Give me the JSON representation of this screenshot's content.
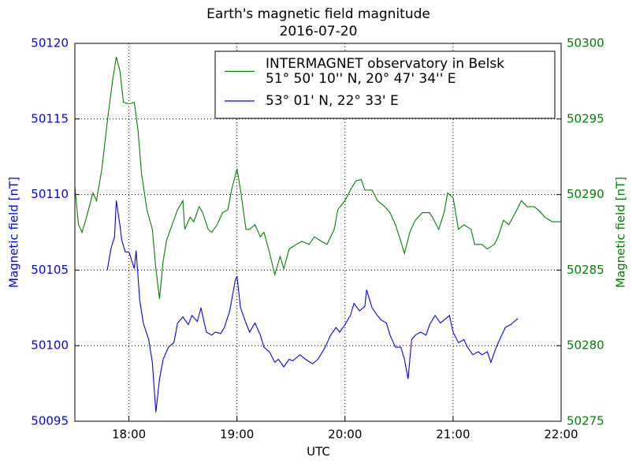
{
  "chart_data": {
    "type": "line",
    "title": "Earth's magnetic field magnitude",
    "subtitle": "2016-07-20",
    "xlabel": "UTC",
    "ylabel": "Magnetic field [nT]",
    "y2label": "Magnetic field [nT]",
    "xlim": [
      "17:30",
      "22:00"
    ],
    "xticks": [
      "18:00",
      "19:00",
      "20:00",
      "21:00",
      "22:00"
    ],
    "ylim": [
      50095,
      50120
    ],
    "yticks": [
      50095,
      50100,
      50105,
      50110,
      50115,
      50120
    ],
    "y2lim": [
      50275,
      50300
    ],
    "y2ticks": [
      50275,
      50280,
      50285,
      50290,
      50295,
      50300
    ],
    "grid": true,
    "legend": "upper right",
    "series": [
      {
        "name": [
          "INTERMAGNET observatory in Belsk",
          "51° 50' 10'' N, 20° 47' 34'' E"
        ],
        "color": "#008000",
        "axis": "y2",
        "x": [
          "17:30",
          "17:32",
          "17:34",
          "17:36",
          "17:40",
          "17:42",
          "17:45",
          "17:48",
          "17:51",
          "17:53",
          "17:55",
          "17:57",
          "18:00",
          "18:03",
          "18:05",
          "18:07",
          "18:10",
          "18:13",
          "18:15",
          "18:17",
          "18:19",
          "18:21",
          "18:24",
          "18:27",
          "18:30",
          "18:31",
          "18:34",
          "18:36",
          "18:39",
          "18:41",
          "18:44",
          "18:46",
          "18:49",
          "18:52",
          "18:55",
          "18:57",
          "19:00",
          "19:02",
          "19:05",
          "19:07",
          "19:10",
          "19:13",
          "19:15",
          "19:18",
          "19:21",
          "19:24",
          "19:26",
          "19:29",
          "19:33",
          "19:36",
          "19:40",
          "19:43",
          "19:47",
          "19:50",
          "19:54",
          "19:56",
          "20:00",
          "20:03",
          "20:06",
          "20:09",
          "20:11",
          "20:15",
          "20:18",
          "20:22",
          "20:25",
          "20:28",
          "20:31",
          "20:33",
          "20:36",
          "20:39",
          "20:43",
          "20:47",
          "20:49",
          "20:52",
          "20:55",
          "20:57",
          "21:00",
          "21:03",
          "21:06",
          "21:10",
          "21:12",
          "21:16",
          "21:19",
          "21:23",
          "21:25",
          "21:28",
          "21:31",
          "21:35",
          "21:38",
          "21:41",
          "21:45",
          "21:48",
          "21:51",
          "21:55",
          "22:00"
        ],
        "values": [
          50290.5,
          50288.0,
          50287.5,
          50288.3,
          50290.1,
          50289.6,
          50291.7,
          50294.8,
          50297.6,
          50299.1,
          50298.2,
          50296.1,
          50296.0,
          50296.1,
          50294.3,
          50291.4,
          50289.0,
          50287.7,
          50285.1,
          50283.1,
          50285.6,
          50287.0,
          50288.0,
          50289.0,
          50289.6,
          50287.7,
          50288.5,
          50288.2,
          50289.2,
          50288.8,
          50287.7,
          50287.5,
          50288.0,
          50288.8,
          50289.0,
          50290.3,
          50291.7,
          50290.3,
          50287.7,
          50287.7,
          50288.0,
          50287.2,
          50287.5,
          50286.2,
          50284.7,
          50285.9,
          50285.1,
          50286.4,
          50286.7,
          50286.9,
          50286.7,
          50287.2,
          50286.9,
          50286.7,
          50287.7,
          50289.0,
          50289.6,
          50290.3,
          50290.9,
          50291.0,
          50290.3,
          50290.3,
          50289.6,
          50289.2,
          50288.8,
          50288.0,
          50286.9,
          50286.1,
          50287.5,
          50288.3,
          50288.8,
          50288.8,
          50288.4,
          50287.7,
          50288.8,
          50290.1,
          50289.8,
          50287.7,
          50288.0,
          50287.7,
          50286.7,
          50286.7,
          50286.4,
          50286.7,
          50287.2,
          50288.3,
          50288.0,
          50288.9,
          50289.6,
          50289.2,
          50289.2,
          50288.9,
          50288.5,
          50288.2,
          50288.2
        ]
      },
      {
        "name": [
          "53° 01' N, 22° 33' E"
        ],
        "color": "#0000ff",
        "axis": "y",
        "x": [
          "17:48",
          "17:50",
          "17:52",
          "17:53",
          "17:55",
          "17:56",
          "17:58",
          "18:00",
          "18:03",
          "18:04",
          "18:06",
          "18:08",
          "18:11",
          "18:13",
          "18:15",
          "18:17",
          "18:19",
          "18:22",
          "18:25",
          "18:27",
          "18:30",
          "18:33",
          "18:35",
          "18:38",
          "18:40",
          "18:43",
          "18:46",
          "18:48",
          "18:51",
          "18:53",
          "18:56",
          "18:59",
          "19:00",
          "19:02",
          "19:05",
          "19:07",
          "19:10",
          "19:13",
          "19:15",
          "19:18",
          "19:21",
          "19:23",
          "19:26",
          "19:29",
          "19:31",
          "19:35",
          "19:38",
          "19:42",
          "19:45",
          "19:49",
          "19:52",
          "19:55",
          "19:57",
          "20:00",
          "20:03",
          "20:05",
          "20:08",
          "20:11",
          "20:12",
          "20:15",
          "20:18",
          "20:20",
          "20:23",
          "20:25",
          "20:28",
          "20:31",
          "20:33",
          "20:35",
          "20:37",
          "20:39",
          "20:42",
          "20:45",
          "20:47",
          "20:50",
          "20:53",
          "20:55",
          "20:58",
          "21:00",
          "21:03",
          "21:06",
          "21:08",
          "21:11",
          "21:14",
          "21:16",
          "21:19",
          "21:21",
          "21:24",
          "21:27",
          "21:29",
          "21:32",
          "21:34",
          "21:36"
        ],
        "values": [
          50105.0,
          50106.4,
          50107.2,
          50109.6,
          50108.0,
          50107.0,
          50106.2,
          50106.2,
          50105.1,
          50106.3,
          50103.0,
          50101.5,
          50100.4,
          50098.9,
          50095.6,
          50097.8,
          50099.1,
          50099.9,
          50100.2,
          50101.5,
          50101.9,
          50101.4,
          50102.0,
          50101.6,
          50102.5,
          50100.9,
          50100.7,
          50100.9,
          50100.8,
          50101.2,
          50102.3,
          50104.3,
          50104.6,
          50102.5,
          50101.5,
          50100.9,
          50101.5,
          50100.7,
          50099.9,
          50099.6,
          50098.9,
          50099.1,
          50098.6,
          50099.1,
          50099.0,
          50099.4,
          50099.1,
          50098.8,
          50099.1,
          50099.9,
          50100.7,
          50101.2,
          50100.9,
          50101.4,
          50102.0,
          50102.8,
          50102.3,
          50102.6,
          50103.7,
          50102.5,
          50102.0,
          50101.7,
          50101.5,
          50100.7,
          50099.9,
          50099.9,
          50099.1,
          50097.8,
          50100.4,
          50100.7,
          50100.9,
          50100.7,
          50101.4,
          50102.0,
          50101.5,
          50101.7,
          50102.0,
          50100.9,
          50100.2,
          50100.4,
          50099.9,
          50099.4,
          50099.6,
          50099.4,
          50099.6,
          50098.9,
          50099.9,
          50100.7,
          50101.2,
          50101.4,
          50101.6,
          50101.8
        ]
      }
    ]
  }
}
